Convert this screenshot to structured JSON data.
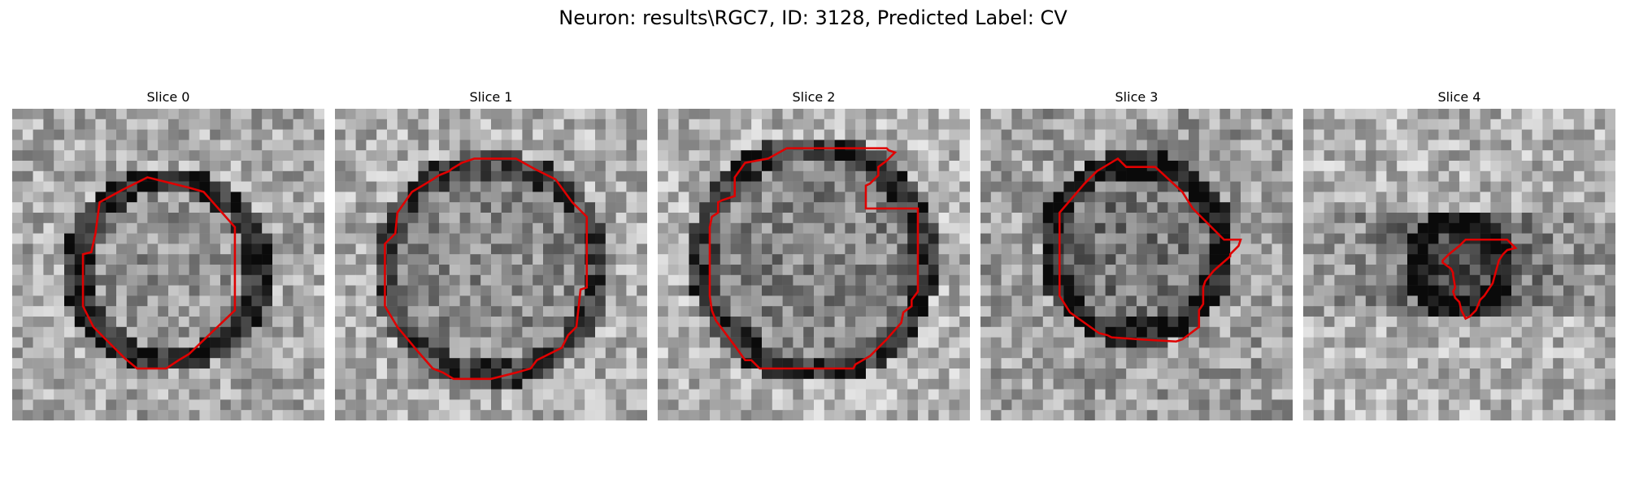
{
  "figure": {
    "title": "Neuron: results\\RGC7, ID: 3128, Predicted Label: CV",
    "contour_color": "#e00000",
    "colormap": "gray"
  },
  "slices": [
    {
      "title": "Slice 0"
    },
    {
      "title": "Slice 1"
    },
    {
      "title": "Slice 2"
    },
    {
      "title": "Slice 3"
    },
    {
      "title": "Slice 4"
    }
  ]
}
